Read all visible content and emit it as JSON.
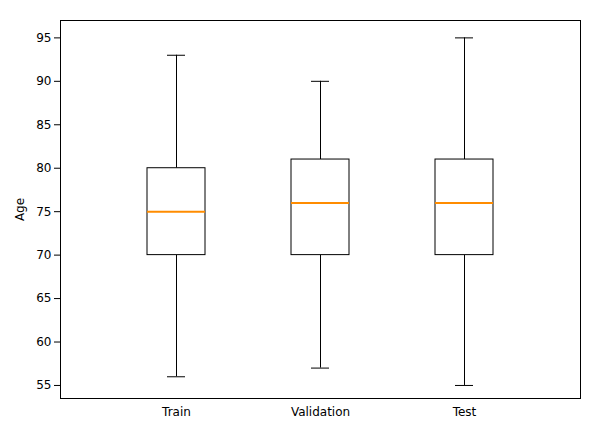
{
  "chart_data": {
    "type": "box",
    "categories": [
      "Train",
      "Validation",
      "Test"
    ],
    "boxes": [
      {
        "low": 56,
        "q1": 70,
        "median": 75,
        "q3": 80,
        "high": 93
      },
      {
        "low": 57,
        "q1": 70,
        "median": 76,
        "q3": 81,
        "high": 90
      },
      {
        "low": 55,
        "q1": 70,
        "median": 76,
        "q3": 81,
        "high": 95
      }
    ],
    "ylabel": "Age",
    "ylim": [
      53.5,
      97
    ],
    "yticks": [
      55,
      60,
      65,
      70,
      75,
      80,
      85,
      90,
      95
    ],
    "color": "#ff8c00",
    "grid": false
  }
}
